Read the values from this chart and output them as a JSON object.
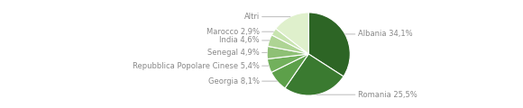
{
  "labels": [
    "Albania",
    "Romania",
    "Georgia",
    "Repubblica Popolare Cinese",
    "Senegal",
    "India",
    "Marocco",
    "Altri"
  ],
  "values": [
    34.1,
    25.5,
    8.1,
    5.4,
    4.9,
    4.6,
    2.9,
    14.5
  ],
  "colors": [
    "#2d6525",
    "#3a7a30",
    "#5da04a",
    "#72b05c",
    "#8ec075",
    "#aed494",
    "#c8e4b0",
    "#dff0cc"
  ],
  "startangle": 90,
  "figsize": [
    5.8,
    1.2
  ],
  "dpi": 100,
  "annotations": [
    {
      "idx": 0,
      "text": "Albania 34,1%",
      "side": "right",
      "ty_override": null
    },
    {
      "idx": 1,
      "text": "Romania 25,5%",
      "side": "right",
      "ty_override": null
    },
    {
      "idx": 2,
      "text": "Georgia 8,1%",
      "side": "left",
      "ty_override": null
    },
    {
      "idx": 3,
      "text": "Repubblica Popolare Cinese 5,4%",
      "side": "left",
      "ty_override": null
    },
    {
      "idx": 4,
      "text": "Senegal 4,9%",
      "side": "left",
      "ty_override": null
    },
    {
      "idx": 5,
      "text": "India 4,6%",
      "side": "left",
      "ty_override": null
    },
    {
      "idx": 6,
      "text": "Marocco 2,9%",
      "side": "left",
      "ty_override": null
    },
    {
      "idx": 7,
      "text": "Altri",
      "side": "left",
      "ty_override": null
    }
  ],
  "text_color": "#888888",
  "line_color": "#bbbbbb",
  "edge_color": "white",
  "font_size": 6.0
}
